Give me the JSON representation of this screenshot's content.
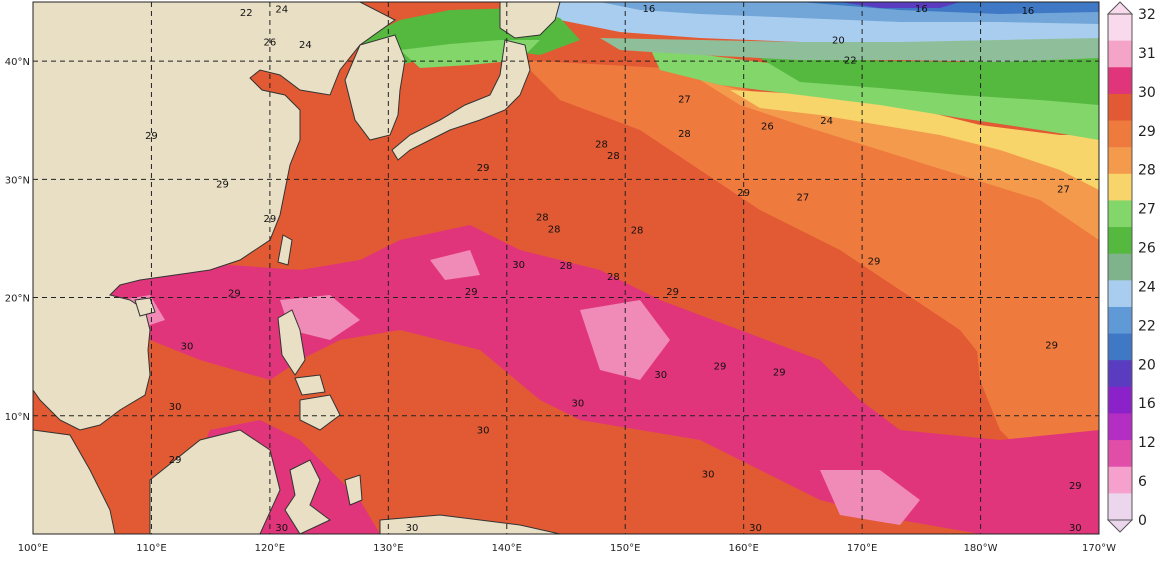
{
  "map": {
    "lon_labels": [
      "100°E",
      "110°E",
      "120°E",
      "130°E",
      "140°E",
      "150°E",
      "160°E",
      "170°E",
      "180°W",
      "170°W"
    ],
    "lat_labels": [
      "40°N",
      "30°N",
      "20°N",
      "10°N"
    ],
    "extent": {
      "lon_min": 100,
      "lon_max": 190,
      "lat_min": 0,
      "lat_max": 45
    },
    "grid": "dashed",
    "colors": {
      "land": "#e8dfc4",
      "ocean_29": "#e25a33",
      "ocean_28": "#ef7a3e",
      "ocean_27": "#f49a4c",
      "ocean_26": "#f7d56a",
      "ocean_25": "#82d66a",
      "ocean_24": "#55b83f",
      "ocean_22": "#8fbf9a",
      "ocean_20": "#a9cdef",
      "ocean_18": "#72a6d8",
      "ocean_warm": "#e0357a",
      "ocean_hot": "#f08ab6"
    }
  },
  "colorbar": {
    "labels": [
      "32",
      "31",
      "30",
      "29",
      "28",
      "27",
      "26",
      "24",
      "22",
      "20",
      "16",
      "12",
      "6",
      "0"
    ],
    "colors": [
      "#f9d9ec",
      "#f3a4c7",
      "#e0357a",
      "#e25a33",
      "#ef7a3e",
      "#f49a4c",
      "#f7d56a",
      "#82d66a",
      "#55b83f",
      "#7fb38c",
      "#a9cdef",
      "#5f9ad6",
      "#3f78c4",
      "#5a3cc0",
      "#8b22c9",
      "#b52ec4",
      "#e04ea8",
      "#f5a0cd",
      "#ecd6ee"
    ]
  },
  "contour_labels": [
    {
      "t": "16",
      "lon": 152,
      "lat": 44.3
    },
    {
      "t": "16",
      "lon": 175,
      "lat": 44.2
    },
    {
      "t": "16",
      "lon": 184,
      "lat": 44
    },
    {
      "t": "20",
      "lon": 168,
      "lat": 41.5
    },
    {
      "t": "22",
      "lon": 169,
      "lat": 39.8
    },
    {
      "t": "22",
      "lon": 118,
      "lat": 43.8
    },
    {
      "t": "24",
      "lon": 121,
      "lat": 44.1
    },
    {
      "t": "24",
      "lon": 123,
      "lat": 41.1
    },
    {
      "t": "26",
      "lon": 120,
      "lat": 41.3
    },
    {
      "t": "24",
      "lon": 167,
      "lat": 34.7
    },
    {
      "t": "26",
      "lon": 162,
      "lat": 34.2
    },
    {
      "t": "27",
      "lon": 155,
      "lat": 36.5
    },
    {
      "t": "27",
      "lon": 165,
      "lat": 28.2
    },
    {
      "t": "27",
      "lon": 187,
      "lat": 28.9
    },
    {
      "t": "28",
      "lon": 155,
      "lat": 33.6
    },
    {
      "t": "28",
      "lon": 148,
      "lat": 32.7
    },
    {
      "t": "28",
      "lon": 149,
      "lat": 31.7
    },
    {
      "t": "28",
      "lon": 143,
      "lat": 26.5
    },
    {
      "t": "28",
      "lon": 144,
      "lat": 25.5
    },
    {
      "t": "28",
      "lon": 151,
      "lat": 25.4
    },
    {
      "t": "28",
      "lon": 145,
      "lat": 22.4
    },
    {
      "t": "28",
      "lon": 149,
      "lat": 21.5
    },
    {
      "t": "29",
      "lon": 160,
      "lat": 28.6
    },
    {
      "t": "29",
      "lon": 171,
      "lat": 22.8
    },
    {
      "t": "29",
      "lon": 154,
      "lat": 20.2
    },
    {
      "t": "29",
      "lon": 158,
      "lat": 13.9
    },
    {
      "t": "29",
      "lon": 163,
      "lat": 13.4
    },
    {
      "t": "29",
      "lon": 186,
      "lat": 15.7
    },
    {
      "t": "29",
      "lon": 188,
      "lat": 3.8
    },
    {
      "t": "30",
      "lon": 141,
      "lat": 22.5
    },
    {
      "t": "30",
      "lon": 146,
      "lat": 10.8
    },
    {
      "t": "30",
      "lon": 153,
      "lat": 13.2
    },
    {
      "t": "30",
      "lon": 157,
      "lat": 4.8
    },
    {
      "t": "30",
      "lon": 161,
      "lat": 0.2
    },
    {
      "t": "30",
      "lon": 188,
      "lat": -0.6
    },
    {
      "t": "29",
      "lon": 110,
      "lat": 33.4
    },
    {
      "t": "29",
      "lon": 116,
      "lat": 29.3
    },
    {
      "t": "29",
      "lon": 120,
      "lat": 26.4
    },
    {
      "t": "29",
      "lon": 117,
      "lat": 20.1
    },
    {
      "t": "30",
      "lon": 112,
      "lat": 10.5
    },
    {
      "t": "29",
      "lon": 112,
      "lat": 6
    },
    {
      "t": "30",
      "lon": 121,
      "lat": -0.3
    },
    {
      "t": "29",
      "lon": 138,
      "lat": 30.7
    },
    {
      "t": "30",
      "lon": 138,
      "lat": 8.5
    },
    {
      "t": "30",
      "lon": 132,
      "lat": -0.2
    },
    {
      "t": "30",
      "lon": 113,
      "lat": 15.6
    },
    {
      "t": "29",
      "lon": 137,
      "lat": 20.2
    }
  ]
}
